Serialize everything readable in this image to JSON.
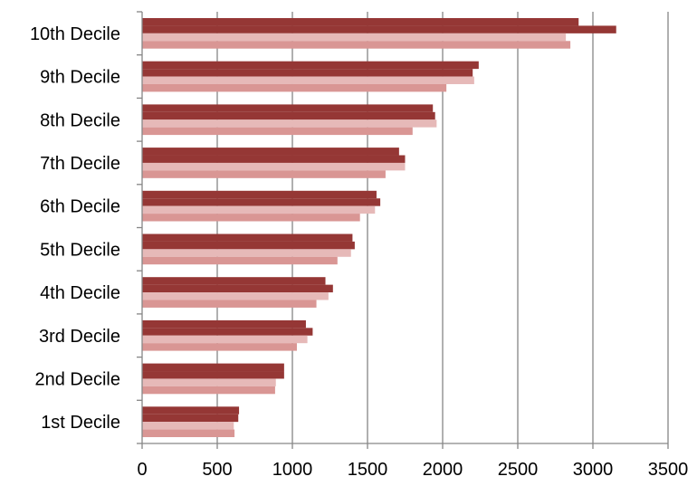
{
  "chart_data": {
    "type": "bar",
    "orientation": "horizontal",
    "title": "",
    "xlabel": "",
    "ylabel": "",
    "xlim": [
      0,
      3500
    ],
    "xticks": [
      0,
      500,
      1000,
      1500,
      2000,
      2500,
      3000,
      3500
    ],
    "grid": "vertical",
    "legend": "none",
    "categories": [
      "1st Decile",
      "2nd Decile",
      "3rd Decile",
      "4th Decile",
      "5th Decile",
      "6th Decile",
      "7th Decile",
      "8th Decile",
      "9th Decile",
      "10th Decile"
    ],
    "series": [
      {
        "color": "#953735",
        "values": [
          645,
          945,
          1090,
          1220,
          1400,
          1560,
          1710,
          1935,
          2240,
          2905
        ]
      },
      {
        "color": "#953735",
        "values": [
          640,
          945,
          1135,
          1270,
          1415,
          1585,
          1750,
          1950,
          2200,
          3155
        ]
      },
      {
        "color": "#e6b9b8",
        "values": [
          610,
          890,
          1100,
          1240,
          1390,
          1550,
          1750,
          1960,
          2210,
          2820
        ]
      },
      {
        "color": "#d99694",
        "values": [
          615,
          885,
          1030,
          1160,
          1300,
          1450,
          1620,
          1800,
          2025,
          2850
        ]
      }
    ]
  }
}
